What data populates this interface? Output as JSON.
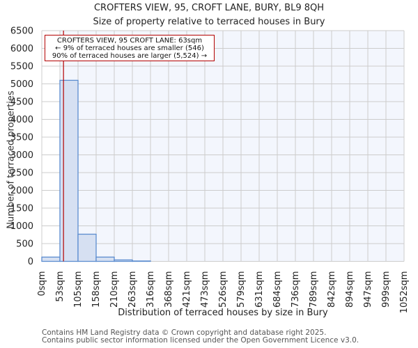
{
  "header": {
    "title": "CROFTERS VIEW, 95, CROFT LANE, BURY, BL9 8QH",
    "subtitle": "Size of property relative to terraced houses in Bury"
  },
  "annotation": {
    "line1": "CROFTERS VIEW, 95 CROFT LANE: 63sqm",
    "line2": "← 9% of terraced houses are smaller (546)",
    "line3": "90% of terraced houses are larger (5,524) →"
  },
  "footer": {
    "line1": "Contains HM Land Registry data © Crown copyright and database right 2025.",
    "line2": "Contains public sector information licensed under the Open Government Licence v3.0."
  },
  "colors": {
    "bar_fill": "#d6e0f2",
    "bar_edge": "#5b8ccf",
    "plot_bg": "#f3f6fd",
    "grid": "#cccccc",
    "marker": "#b30000"
  },
  "chart_data": {
    "type": "bar",
    "title": "CROFTERS VIEW, 95, CROFT LANE, BURY, BL9 8QH",
    "subtitle": "Size of property relative to terraced houses in Bury",
    "xlabel": "Distribution of terraced houses by size in Bury",
    "ylabel": "Number of terraced properties",
    "categories": [
      "0sqm",
      "53sqm",
      "105sqm",
      "158sqm",
      "210sqm",
      "263sqm",
      "316sqm",
      "368sqm",
      "421sqm",
      "473sqm",
      "526sqm",
      "579sqm",
      "631sqm",
      "684sqm",
      "736sqm",
      "789sqm",
      "842sqm",
      "894sqm",
      "947sqm",
      "999sqm",
      "1052sqm"
    ],
    "values": [
      120,
      5100,
      765,
      120,
      40,
      10,
      0,
      0,
      0,
      0,
      0,
      0,
      0,
      0,
      0,
      0,
      0,
      0,
      0,
      0
    ],
    "yticks": [
      0,
      500,
      1000,
      1500,
      2000,
      2500,
      3000,
      3500,
      4000,
      4500,
      5000,
      5500,
      6000,
      6500
    ],
    "ylim": [
      0,
      6500
    ],
    "xlim": [
      0,
      1052
    ],
    "grid": true,
    "marker": {
      "x": 63,
      "label": "CROFTERS VIEW, 95 CROFT LANE: 63sqm"
    },
    "annotations": [
      "CROFTERS VIEW, 95 CROFT LANE: 63sqm",
      "← 9% of terraced houses are smaller (546)",
      "90% of terraced houses are larger (5,524) →"
    ]
  }
}
